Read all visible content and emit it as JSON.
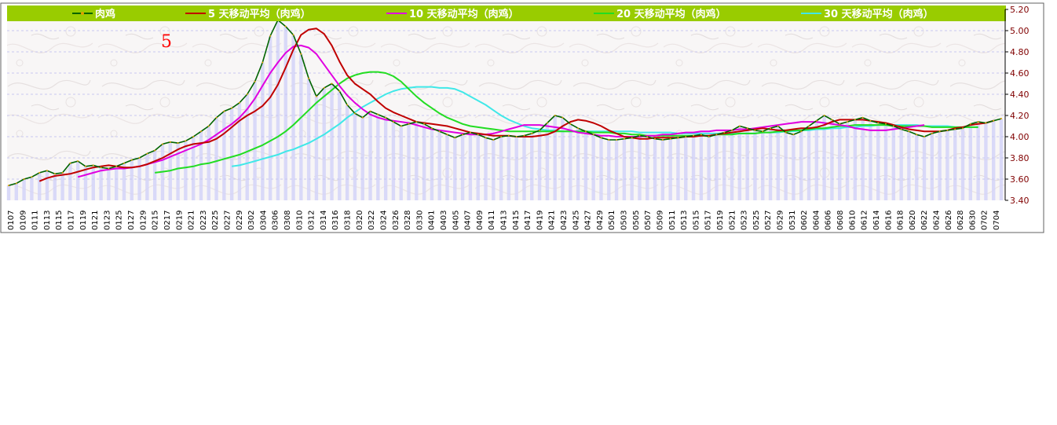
{
  "chart_data": {
    "type": "line",
    "title": "",
    "annotation": "5",
    "y_ticks": [
      "5.20",
      "5.00",
      "4.80",
      "4.60",
      "4.40",
      "4.20",
      "4.00",
      "3.80",
      "3.60",
      "3.40"
    ],
    "ylim": [
      3.4,
      5.2
    ],
    "grid": true,
    "legend_position": "top",
    "x_ticks": [
      "0107",
      "0109",
      "0111",
      "0113",
      "0115",
      "0117",
      "0119",
      "0121",
      "0123",
      "0125",
      "0127",
      "0129",
      "0215",
      "0217",
      "0219",
      "0221",
      "0223",
      "0225",
      "0227",
      "0229",
      "0302",
      "0304",
      "0306",
      "0308",
      "0310",
      "0312",
      "0314",
      "0316",
      "0318",
      "0320",
      "0322",
      "0324",
      "0326",
      "0328",
      "0330",
      "0401",
      "0403",
      "0405",
      "0407",
      "0409",
      "0411",
      "0413",
      "0415",
      "0417",
      "0419",
      "0421",
      "0423",
      "0425",
      "0427",
      "0429",
      "0501",
      "0503",
      "0505",
      "0507",
      "0509",
      "0511",
      "0513",
      "0515",
      "0517",
      "0519",
      "0521",
      "0523",
      "0525",
      "0527",
      "0529",
      "0531",
      "0602",
      "0604",
      "0606",
      "0608",
      "0610",
      "0612",
      "0614",
      "0616",
      "0618",
      "0620",
      "0622",
      "0624",
      "0626",
      "0628",
      "0630",
      "0702",
      "0704"
    ],
    "series": [
      {
        "name": "肉鸡",
        "color": "#006400",
        "start": 0,
        "values": [
          3.54,
          3.56,
          3.6,
          3.62,
          3.66,
          3.68,
          3.65,
          3.66,
          3.75,
          3.77,
          3.72,
          3.73,
          3.71,
          3.7,
          3.72,
          3.75,
          3.78,
          3.8,
          3.84,
          3.87,
          3.93,
          3.95,
          3.94,
          3.96,
          4.0,
          4.05,
          4.1,
          4.18,
          4.24,
          4.27,
          4.32,
          4.4,
          4.52,
          4.7,
          4.95,
          5.1,
          5.04,
          4.96,
          4.78,
          4.55,
          4.38,
          4.46,
          4.5,
          4.43,
          4.3,
          4.22,
          4.18,
          4.24,
          4.21,
          4.18,
          4.14,
          4.1,
          4.12,
          4.14,
          4.12,
          4.08,
          4.05,
          4.02,
          3.99,
          4.02,
          4.04,
          4.02,
          3.99,
          3.97,
          4.0,
          4.01,
          4.0,
          4.01,
          4.03,
          4.06,
          4.13,
          4.2,
          4.18,
          4.12,
          4.08,
          4.05,
          4.02,
          3.99,
          3.97,
          3.97,
          3.98,
          3.99,
          4.01,
          4.0,
          3.98,
          3.97,
          3.98,
          3.99,
          4.0,
          4.01,
          4.02,
          4.0,
          4.02,
          4.04,
          4.06,
          4.1,
          4.08,
          4.06,
          4.05,
          4.08,
          4.1,
          4.04,
          4.02,
          4.05,
          4.1,
          4.15,
          4.2,
          4.16,
          4.12,
          4.14,
          4.16,
          4.18,
          4.15,
          4.13,
          4.12,
          4.1,
          4.07,
          4.05,
          4.02,
          4.0,
          4.03,
          4.05,
          4.06,
          4.07,
          4.08,
          4.12,
          4.14,
          4.13,
          4.15,
          4.17
        ]
      },
      {
        "name": "5 天移动平均（肉鸡）",
        "color": "#c00000",
        "start": 4,
        "values": [
          3.58,
          3.61,
          3.63,
          3.64,
          3.65,
          3.67,
          3.69,
          3.71,
          3.72,
          3.73,
          3.72,
          3.71,
          3.71,
          3.72,
          3.74,
          3.77,
          3.8,
          3.84,
          3.88,
          3.91,
          3.93,
          3.94,
          3.95,
          3.98,
          4.03,
          4.09,
          4.15,
          4.2,
          4.24,
          4.29,
          4.37,
          4.49,
          4.65,
          4.82,
          4.96,
          5.01,
          5.02,
          4.97,
          4.86,
          4.71,
          4.58,
          4.5,
          4.45,
          4.4,
          4.33,
          4.27,
          4.23,
          4.2,
          4.17,
          4.14,
          4.13,
          4.12,
          4.11,
          4.1,
          4.08,
          4.06,
          4.04,
          4.03,
          4.02,
          4.01,
          4.01,
          4.01,
          4.0,
          4.0,
          4.0,
          4.01,
          4.02,
          4.05,
          4.1,
          4.14,
          4.16,
          4.15,
          4.13,
          4.1,
          4.06,
          4.03,
          4.0,
          3.99,
          3.98,
          3.98,
          3.99,
          3.99,
          3.99,
          3.99,
          4.0,
          4.0,
          4.01,
          4.01,
          4.02,
          4.03,
          4.04,
          4.05,
          4.06,
          4.07,
          4.08,
          4.07,
          4.06,
          4.06,
          4.07,
          4.08,
          4.08,
          4.09,
          4.11,
          4.14,
          4.16,
          4.16,
          4.16,
          4.16,
          4.15,
          4.14,
          4.13,
          4.11,
          4.09,
          4.07,
          4.06,
          4.05,
          4.05,
          4.05,
          4.06,
          4.08,
          4.09,
          4.11,
          4.12,
          4.13,
          4.15
        ]
      },
      {
        "name": "10 天移动平均（肉鸡）",
        "color": "#e000e0",
        "start": 9,
        "values": [
          3.62,
          3.64,
          3.66,
          3.68,
          3.69,
          3.7,
          3.7,
          3.71,
          3.72,
          3.74,
          3.76,
          3.78,
          3.81,
          3.84,
          3.87,
          3.9,
          3.93,
          3.97,
          4.02,
          4.07,
          4.12,
          4.18,
          4.26,
          4.36,
          4.48,
          4.6,
          4.7,
          4.79,
          4.85,
          4.86,
          4.84,
          4.78,
          4.68,
          4.58,
          4.48,
          4.39,
          4.32,
          4.26,
          4.21,
          4.18,
          4.16,
          4.15,
          4.14,
          4.13,
          4.11,
          4.09,
          4.07,
          4.06,
          4.05,
          4.04,
          4.03,
          4.02,
          4.02,
          4.02,
          4.03,
          4.05,
          4.07,
          4.09,
          4.11,
          4.11,
          4.11,
          4.1,
          4.09,
          4.08,
          4.06,
          4.04,
          4.03,
          4.02,
          4.01,
          4.01,
          4.0,
          4.0,
          4.0,
          4.0,
          4.01,
          4.01,
          4.02,
          4.02,
          4.03,
          4.04,
          4.04,
          4.05,
          4.05,
          4.06,
          4.06,
          4.06,
          4.07,
          4.07,
          4.08,
          4.09,
          4.1,
          4.11,
          4.12,
          4.13,
          4.14,
          4.14,
          4.14,
          4.13,
          4.12,
          4.11,
          4.1,
          4.08,
          4.07,
          4.06,
          4.06,
          4.06,
          4.07,
          4.08,
          4.09,
          4.1,
          4.11
        ]
      },
      {
        "name": "20 天移动平均（肉鸡）",
        "color": "#22dd22",
        "start": 19,
        "values": [
          3.66,
          3.67,
          3.68,
          3.7,
          3.71,
          3.72,
          3.74,
          3.75,
          3.77,
          3.79,
          3.81,
          3.83,
          3.86,
          3.89,
          3.92,
          3.96,
          4.0,
          4.05,
          4.11,
          4.18,
          4.25,
          4.32,
          4.38,
          4.44,
          4.5,
          4.55,
          4.58,
          4.6,
          4.61,
          4.61,
          4.6,
          4.57,
          4.52,
          4.45,
          4.38,
          4.32,
          4.27,
          4.22,
          4.18,
          4.15,
          4.12,
          4.1,
          4.09,
          4.08,
          4.07,
          4.06,
          4.05,
          4.05,
          4.05,
          4.05,
          4.05,
          4.05,
          4.05,
          4.05,
          4.05,
          4.05,
          4.05,
          4.04,
          4.04,
          4.04,
          4.03,
          4.03,
          4.02,
          4.02,
          4.01,
          4.01,
          4.01,
          4.01,
          4.01,
          4.01,
          4.01,
          4.01,
          4.01,
          4.02,
          4.02,
          4.02,
          4.03,
          4.03,
          4.03,
          4.04,
          4.04,
          4.05,
          4.05,
          4.06,
          4.06,
          4.07,
          4.08,
          4.08,
          4.09,
          4.1,
          4.1,
          4.11,
          4.11,
          4.11,
          4.11,
          4.11,
          4.1,
          4.1,
          4.1,
          4.1,
          4.1,
          4.09,
          4.09,
          4.09,
          4.09,
          4.09,
          4.09,
          4.09
        ]
      },
      {
        "name": "30 天移动平均（肉鸡）",
        "color": "#40e8e8",
        "start": 29,
        "values": [
          3.72,
          3.73,
          3.75,
          3.77,
          3.79,
          3.81,
          3.83,
          3.86,
          3.88,
          3.91,
          3.94,
          3.98,
          4.02,
          4.07,
          4.12,
          4.18,
          4.23,
          4.28,
          4.32,
          4.36,
          4.4,
          4.43,
          4.45,
          4.46,
          4.47,
          4.47,
          4.47,
          4.46,
          4.46,
          4.45,
          4.42,
          4.38,
          4.34,
          4.3,
          4.25,
          4.2,
          4.16,
          4.13,
          4.1,
          4.08,
          4.07,
          4.06,
          4.06,
          4.05,
          4.05,
          4.05,
          4.05,
          4.05,
          4.05,
          4.05,
          4.05,
          4.05,
          4.05,
          4.04,
          4.04,
          4.04,
          4.04,
          4.04,
          4.03,
          4.03,
          4.03,
          4.03,
          4.03,
          4.03,
          4.03,
          4.03,
          4.03,
          4.03,
          4.03,
          4.04,
          4.04,
          4.04,
          4.05,
          4.05,
          4.06,
          4.06,
          4.07,
          4.07,
          4.08,
          4.08,
          4.09,
          4.09,
          4.1,
          4.1,
          4.11,
          4.11,
          4.11,
          4.11,
          4.11,
          4.11,
          4.1,
          4.1,
          4.1,
          4.1,
          4.09,
          4.09,
          4.09,
          4.09
        ]
      }
    ]
  }
}
